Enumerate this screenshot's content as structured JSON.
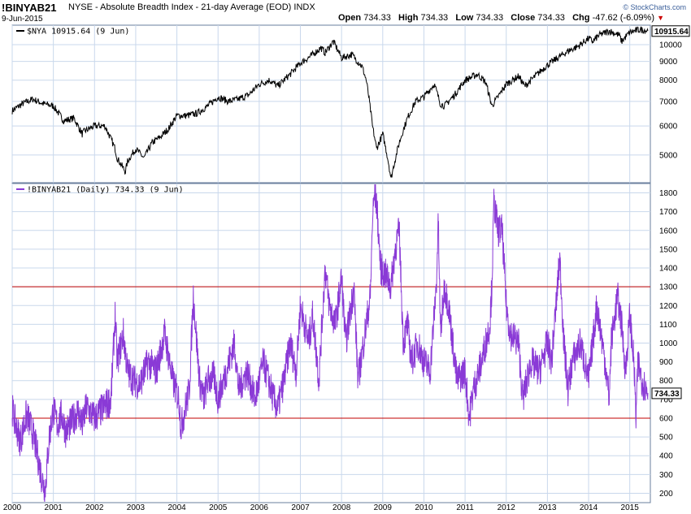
{
  "header": {
    "symbol": "!BINYAB21",
    "description": "NYSE - Absolute Breadth Index - 21-day Average (EOD)  INDX",
    "date": "9-Jun-2015",
    "quote": {
      "open_label": "Open",
      "open": "734.33",
      "high_label": "High",
      "high": "734.33",
      "low_label": "Low",
      "low": "734.33",
      "close_label": "Close",
      "close": "734.33",
      "chg_label": "Chg",
      "chg": "-47.62 (-6.09%)"
    },
    "brand": "© StockCharts.com"
  },
  "colors": {
    "nya_line": "#000000",
    "breadth_line": "#8a3ad6",
    "ref_line": "#c00000",
    "grid": "#c9d8ec",
    "frame": "#6a7f9e"
  },
  "chart_data": [
    {
      "type": "line",
      "legend": "$NYA 10915.64 (9 Jun)",
      "last_value_label": "10915.64",
      "y_scale": "log",
      "ylim": [
        4200,
        11300
      ],
      "y_ticks": [
        5000,
        6000,
        7000,
        8000,
        9000,
        10000
      ],
      "x": [
        2000.0,
        2000.25,
        2000.5,
        2000.75,
        2001.0,
        2001.25,
        2001.5,
        2001.7,
        2001.75,
        2002.0,
        2002.25,
        2002.5,
        2002.55,
        2002.75,
        2002.8,
        2003.0,
        2003.2,
        2003.4,
        2003.6,
        2003.8,
        2004.0,
        2004.25,
        2004.5,
        2004.75,
        2005.0,
        2005.25,
        2005.5,
        2005.75,
        2006.0,
        2006.25,
        2006.45,
        2006.75,
        2007.0,
        2007.25,
        2007.5,
        2007.6,
        2007.8,
        2008.0,
        2008.25,
        2008.5,
        2008.6,
        2008.75,
        2008.85,
        2009.0,
        2009.15,
        2009.2,
        2009.4,
        2009.6,
        2009.8,
        2010.0,
        2010.25,
        2010.4,
        2010.5,
        2010.75,
        2011.0,
        2011.3,
        2011.5,
        2011.65,
        2011.8,
        2012.0,
        2012.3,
        2012.45,
        2012.75,
        2013.0,
        2013.25,
        2013.5,
        2013.75,
        2014.0,
        2014.1,
        2014.25,
        2014.5,
        2014.75,
        2014.8,
        2015.0,
        2015.25,
        2015.44
      ],
      "y": [
        6600,
        6900,
        7100,
        6900,
        6800,
        6200,
        6300,
        5700,
        5800,
        6000,
        6000,
        5200,
        4900,
        4500,
        4800,
        5200,
        4900,
        5400,
        5600,
        5900,
        6400,
        6400,
        6500,
        6800,
        7200,
        7000,
        7100,
        7300,
        7800,
        8000,
        7700,
        8300,
        8900,
        9300,
        9800,
        9500,
        10200,
        9200,
        9400,
        8700,
        8000,
        6000,
        5200,
        5700,
        4700,
        4300,
        5400,
        6300,
        7000,
        7200,
        7800,
        6900,
        6800,
        7300,
        8000,
        8300,
        7900,
        6800,
        7200,
        7800,
        8200,
        7700,
        8300,
        8800,
        9200,
        9600,
        9900,
        10400,
        10200,
        10600,
        10900,
        10600,
        10200,
        10800,
        11000,
        10915.64
      ]
    },
    {
      "type": "line",
      "legend": "!BINYAB21 (Daily) 734.33 (9 Jun)",
      "last_value_label": "734.33",
      "ylim": [
        150,
        1850
      ],
      "y_ticks": [
        200,
        300,
        400,
        500,
        600,
        700,
        800,
        900,
        1000,
        1100,
        1200,
        1300,
        1400,
        1500,
        1600,
        1700,
        1800
      ],
      "reference_lines": [
        600,
        1300
      ],
      "x_ticks": [
        "2000",
        "2001",
        "2002",
        "2003",
        "2004",
        "2005",
        "2006",
        "2007",
        "2008",
        "2009",
        "2010",
        "2011",
        "2012",
        "2013",
        "2014",
        "2015"
      ],
      "x": [
        2000.0,
        2000.1,
        2000.2,
        2000.35,
        2000.5,
        2000.6,
        2000.7,
        2000.8,
        2000.9,
        2001.0,
        2001.1,
        2001.2,
        2001.3,
        2001.45,
        2001.6,
        2001.7,
        2001.8,
        2002.0,
        2002.2,
        2002.4,
        2002.5,
        2002.55,
        2002.7,
        2002.8,
        2002.95,
        2003.1,
        2003.3,
        2003.5,
        2003.7,
        2003.9,
        2004.05,
        2004.1,
        2004.3,
        2004.4,
        2004.55,
        2004.65,
        2004.75,
        2004.9,
        2005.0,
        2005.2,
        2005.4,
        2005.5,
        2005.7,
        2005.9,
        2006.1,
        2006.35,
        2006.45,
        2006.6,
        2006.75,
        2006.9,
        2007.0,
        2007.2,
        2007.3,
        2007.45,
        2007.6,
        2007.7,
        2007.85,
        2008.0,
        2008.1,
        2008.3,
        2008.4,
        2008.6,
        2008.7,
        2008.75,
        2008.8,
        2008.85,
        2008.95,
        2009.1,
        2009.2,
        2009.3,
        2009.4,
        2009.5,
        2009.6,
        2009.7,
        2009.85,
        2010.0,
        2010.15,
        2010.3,
        2010.35,
        2010.4,
        2010.5,
        2010.6,
        2010.8,
        2011.0,
        2011.1,
        2011.2,
        2011.4,
        2011.6,
        2011.65,
        2011.7,
        2011.8,
        2011.9,
        2012.0,
        2012.1,
        2012.3,
        2012.4,
        2012.6,
        2012.8,
        2013.0,
        2013.1,
        2013.3,
        2013.4,
        2013.5,
        2013.6,
        2013.8,
        2014.0,
        2014.2,
        2014.4,
        2014.5,
        2014.55,
        2014.7,
        2014.8,
        2014.9,
        2015.0,
        2015.1,
        2015.15,
        2015.2,
        2015.3,
        2015.44
      ],
      "y": [
        650,
        550,
        480,
        620,
        520,
        420,
        300,
        220,
        500,
        650,
        560,
        620,
        530,
        580,
        640,
        560,
        660,
        600,
        650,
        700,
        1150,
        900,
        1050,
        850,
        800,
        780,
        900,
        850,
        1050,
        800,
        700,
        550,
        750,
        1250,
        800,
        700,
        800,
        820,
        700,
        850,
        1000,
        750,
        850,
        700,
        900,
        700,
        650,
        800,
        1000,
        850,
        1200,
        1000,
        1150,
        800,
        1400,
        1200,
        1100,
        1350,
        1000,
        1300,
        800,
        1100,
        1250,
        1650,
        1800,
        1750,
        1400,
        1350,
        1300,
        1500,
        1600,
        1000,
        1100,
        900,
        1000,
        900,
        850,
        1300,
        1650,
        1050,
        1300,
        1200,
        800,
        850,
        600,
        750,
        900,
        1100,
        1300,
        1750,
        1600,
        1600,
        1200,
        1050,
        1000,
        700,
        900,
        850,
        1000,
        900,
        1450,
        1000,
        750,
        900,
        1000,
        800,
        1200,
        900,
        700,
        1000,
        1250,
        1100,
        850,
        1150,
        900,
        600,
        900,
        800,
        734.33
      ]
    }
  ]
}
